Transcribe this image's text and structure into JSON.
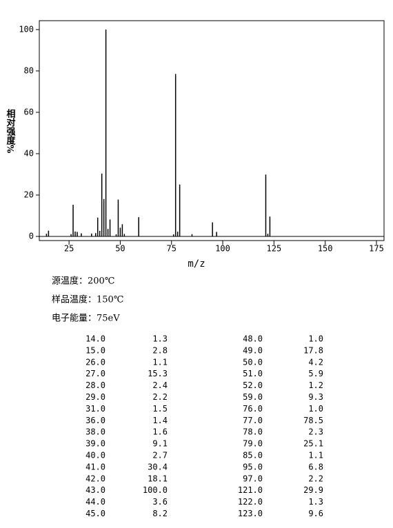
{
  "chart_data": {
    "type": "bar",
    "color": "#000000",
    "x": [
      14,
      15,
      26,
      27,
      28,
      29,
      31,
      36,
      38,
      39,
      40,
      41,
      42,
      43,
      44,
      45,
      48,
      49,
      50,
      51,
      52,
      59,
      76,
      77,
      78,
      79,
      85,
      95,
      97,
      121,
      122,
      123
    ],
    "x_labels": [
      "14.0",
      "15.0",
      "26.0",
      "27.0",
      "28.0",
      "29.0",
      "31.0",
      "36.0",
      "38.0",
      "39.0",
      "40.0",
      "41.0",
      "42.0",
      "43.0",
      "44.0",
      "45.0",
      "48.0",
      "49.0",
      "50.0",
      "51.0",
      "52.0",
      "59.0",
      "76.0",
      "77.0",
      "78.0",
      "79.0",
      "85.0",
      "95.0",
      "97.0",
      "121.0",
      "122.0",
      "123.0"
    ],
    "values": [
      1.3,
      2.8,
      1.1,
      15.3,
      2.4,
      2.2,
      1.5,
      1.4,
      1.6,
      9.1,
      2.7,
      30.4,
      18.1,
      100.0,
      3.6,
      8.2,
      1.0,
      17.8,
      4.2,
      5.9,
      1.2,
      9.3,
      1.0,
      78.5,
      2.3,
      25.1,
      1.1,
      6.8,
      2.2,
      29.9,
      1.3,
      9.6
    ],
    "value_labels": [
      "1.3",
      "2.8",
      "1.1",
      "15.3",
      "2.4",
      "2.2",
      "1.5",
      "1.4",
      "1.6",
      "9.1",
      "2.7",
      "30.4",
      "18.1",
      "100.0",
      "3.6",
      "8.2",
      "1.0",
      "17.8",
      "4.2",
      "5.9",
      "1.2",
      "9.3",
      "1.0",
      "78.5",
      "2.3",
      "25.1",
      "1.1",
      "6.8",
      "2.2",
      "29.9",
      "1.3",
      "9.6"
    ],
    "xlim": [
      10.5,
      178.7
    ],
    "xticks": [
      25,
      50,
      75,
      100,
      125,
      150,
      175
    ],
    "ylim": [
      -2,
      104.3
    ],
    "yticks": [
      0,
      20,
      40,
      60,
      80,
      100
    ],
    "x_label": "m/z",
    "y_label": "相对强度%"
  },
  "conditions": [
    "源温度：200℃",
    "样品温度：150℃",
    "电子能量：75eV"
  ]
}
